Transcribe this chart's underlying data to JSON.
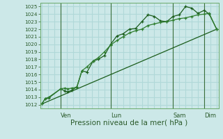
{
  "xlabel": "Pression niveau de la mer( hPa )",
  "bg_color": "#cce8e8",
  "grid_color": "#b0d8d8",
  "line_color_dark": "#1a5c1a",
  "line_color_mid": "#2e7d2e",
  "ylim": [
    1011.5,
    1025.5
  ],
  "yticks": [
    1012,
    1013,
    1014,
    1015,
    1016,
    1017,
    1018,
    1019,
    1020,
    1021,
    1022,
    1023,
    1024,
    1025
  ],
  "xlim": [
    -0.15,
    14.15
  ],
  "vline_positions": [
    1.5,
    5.5,
    10.5,
    13.0
  ],
  "xtick_pos": [
    1.5,
    5.5,
    10.5,
    13.0
  ],
  "xtick_labels": [
    "Ven",
    "Lun",
    "Sam",
    "Dim"
  ],
  "series1_x": [
    0,
    0.25,
    0.55,
    1.5,
    1.85,
    2.05,
    2.4,
    2.8,
    3.2,
    3.6,
    4.1,
    4.5,
    5.0,
    5.5,
    6.0,
    6.5,
    7.0,
    7.5,
    8.0,
    8.5,
    9.0,
    9.5,
    10.0,
    10.5,
    11.0,
    11.5,
    12.0,
    12.5,
    13.0,
    13.4,
    14.0
  ],
  "series1_y": [
    1012.1,
    1012.8,
    1012.9,
    1014.1,
    1013.8,
    1013.7,
    1013.9,
    1014.4,
    1016.5,
    1016.3,
    1017.8,
    1018.0,
    1018.5,
    1020.0,
    1021.1,
    1021.4,
    1022.0,
    1022.1,
    1023.0,
    1023.9,
    1023.7,
    1023.1,
    1023.0,
    1023.7,
    1023.9,
    1025.0,
    1024.8,
    1024.1,
    1024.5,
    1024.0,
    1022.0
  ],
  "series2_x": [
    0,
    0.25,
    0.55,
    1.5,
    1.85,
    2.05,
    2.4,
    2.8,
    3.2,
    3.6,
    4.1,
    4.5,
    5.0,
    5.5,
    6.0,
    6.5,
    7.0,
    7.5,
    8.0,
    8.5,
    9.0,
    9.5,
    10.0,
    10.5,
    11.0,
    11.5,
    12.0,
    12.5,
    13.0,
    13.4,
    14.0
  ],
  "series2_y": [
    1012.1,
    1012.8,
    1013.0,
    1014.1,
    1014.2,
    1014.1,
    1014.2,
    1014.3,
    1016.5,
    1017.0,
    1017.8,
    1018.2,
    1019.0,
    1019.9,
    1020.5,
    1021.0,
    1021.5,
    1021.8,
    1022.0,
    1022.5,
    1022.7,
    1022.9,
    1023.0,
    1023.2,
    1023.4,
    1023.5,
    1023.7,
    1023.9,
    1024.0,
    1024.1,
    1022.0
  ],
  "series3_x": [
    0,
    14.0
  ],
  "series3_y": [
    1012.1,
    1022.0
  ]
}
